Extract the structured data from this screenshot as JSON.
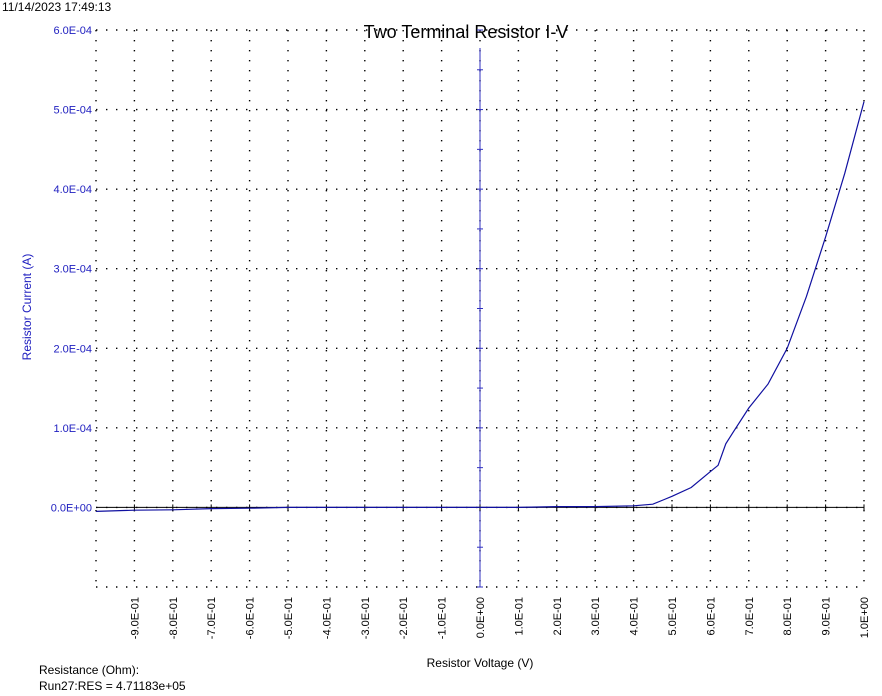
{
  "timestamp": "11/14/2023 17:49:13",
  "footer": {
    "resistance_label": "Resistance (Ohm):",
    "resistance_value": "Run27:RES = 4.71183e+05"
  },
  "colors": {
    "axis_text": "#2020c0",
    "series": "#1010a0",
    "axes": "#000000"
  },
  "chart_data": {
    "type": "line",
    "title": "Two Terminal Resistor I-V",
    "xlabel": "Resistor Voltage (V)",
    "ylabel": "Resistor Current (A)",
    "xlim": [
      -1.0,
      1.0
    ],
    "ylim": [
      -0.0001,
      0.0006
    ],
    "grid": true,
    "x_ticks": [
      {
        "v": -0.9,
        "label": "-9.0E-01"
      },
      {
        "v": -0.8,
        "label": "-8.0E-01"
      },
      {
        "v": -0.7,
        "label": "-7.0E-01"
      },
      {
        "v": -0.6,
        "label": "-6.0E-01"
      },
      {
        "v": -0.5,
        "label": "-5.0E-01"
      },
      {
        "v": -0.4,
        "label": "-4.0E-01"
      },
      {
        "v": -0.3,
        "label": "-3.0E-01"
      },
      {
        "v": -0.2,
        "label": "-2.0E-01"
      },
      {
        "v": -0.1,
        "label": "-1.0E-01"
      },
      {
        "v": 0.0,
        "label": "0.0E+00"
      },
      {
        "v": 0.1,
        "label": "1.0E-01"
      },
      {
        "v": 0.2,
        "label": "2.0E-01"
      },
      {
        "v": 0.3,
        "label": "3.0E-01"
      },
      {
        "v": 0.4,
        "label": "4.0E-01"
      },
      {
        "v": 0.5,
        "label": "5.0E-01"
      },
      {
        "v": 0.6,
        "label": "6.0E-01"
      },
      {
        "v": 0.7,
        "label": "7.0E-01"
      },
      {
        "v": 0.8,
        "label": "8.0E-01"
      },
      {
        "v": 0.9,
        "label": "9.0E-01"
      },
      {
        "v": 1.0,
        "label": "1.0E+00"
      }
    ],
    "y_ticks": [
      {
        "v": 0.0,
        "label": "0.0E+00"
      },
      {
        "v": 0.0001,
        "label": "1.0E-04"
      },
      {
        "v": 0.0002,
        "label": "2.0E-04"
      },
      {
        "v": 0.0003,
        "label": "3.0E-04"
      },
      {
        "v": 0.0004,
        "label": "4.0E-04"
      },
      {
        "v": 0.0005,
        "label": "5.0E-04"
      },
      {
        "v": 0.0006,
        "label": "6.0E-04"
      }
    ],
    "series": [
      {
        "x": [
          -1.0,
          -0.9,
          -0.8,
          -0.7,
          -0.6,
          -0.5,
          -0.4,
          -0.3,
          -0.2,
          -0.1,
          0.0,
          0.1,
          0.2,
          0.3,
          0.4,
          0.45,
          0.48,
          0.5,
          0.55,
          0.6,
          0.62,
          0.64,
          0.66,
          0.7,
          0.75,
          0.8,
          0.85,
          0.9,
          0.95,
          1.0
        ],
        "y": [
          -5e-06,
          -3.5e-06,
          -3e-06,
          -1.5e-06,
          -1e-06,
          0.0,
          0.0,
          0.0,
          0.0,
          0.0,
          0.0,
          0.0,
          1e-06,
          1e-06,
          2e-06,
          4e-06,
          1e-05,
          1.4e-05,
          2.5e-05,
          4.5e-05,
          5.3e-05,
          8e-05,
          9.5e-05,
          0.000125,
          0.000155,
          0.0002,
          0.000265,
          0.00034,
          0.00042,
          0.00051
        ]
      }
    ]
  }
}
